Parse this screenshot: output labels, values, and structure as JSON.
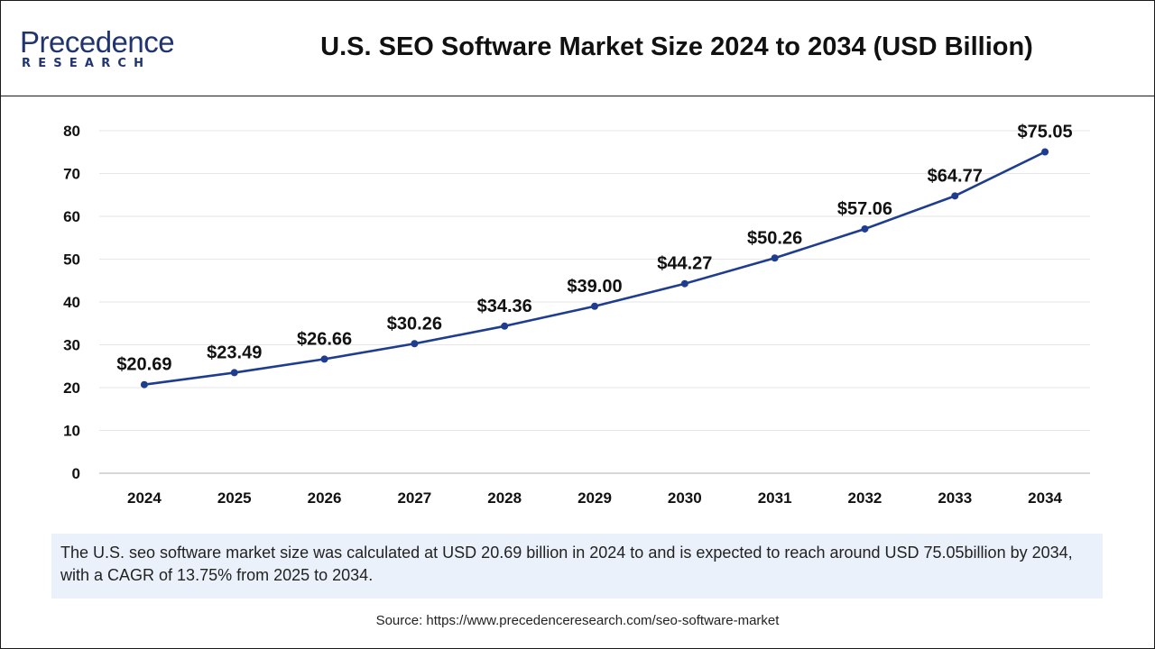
{
  "logo": {
    "word": "Precedence",
    "sub": "RESEARCH"
  },
  "title": "U.S. SEO Software Market Size 2024 to 2034 (USD Billion)",
  "caption": "The U.S. seo software market size was calculated at USD 20.69 billion in 2024 to and is expected to reach around USD 75.05billion by 2034, with a CAGR of 13.75% from 2025 to 2034.",
  "source": "Source: https://www.precedenceresearch.com/seo-software-market",
  "colors": {
    "line": "#1f3d8f",
    "grid": "#e6e6e6",
    "axis": "#bfbfbf",
    "caption_bg": "#eaf1fa"
  },
  "chart_data": {
    "type": "line",
    "title": "U.S. SEO Software Market Size 2024 to 2034 (USD Billion)",
    "xlabel": "",
    "ylabel": "",
    "categories": [
      "2024",
      "2025",
      "2026",
      "2027",
      "2028",
      "2029",
      "2030",
      "2031",
      "2032",
      "2033",
      "2034"
    ],
    "values": [
      20.69,
      23.49,
      26.66,
      30.26,
      34.36,
      39.0,
      44.27,
      50.26,
      57.06,
      64.77,
      75.05
    ],
    "data_labels": [
      "$20.69",
      "$23.49",
      "$26.66",
      "$30.26",
      "$34.36",
      "$39.00",
      "$44.27",
      "$50.26",
      "$57.06",
      "$64.77",
      "$75.05"
    ],
    "yticks": [
      0,
      10,
      20,
      30,
      40,
      50,
      60,
      70,
      80
    ],
    "ylim": [
      0,
      80
    ],
    "grid": true,
    "legend": "none"
  }
}
